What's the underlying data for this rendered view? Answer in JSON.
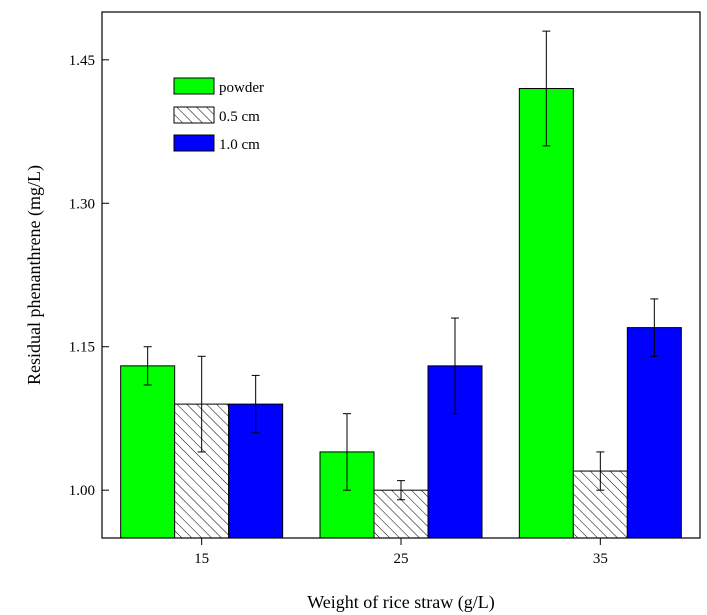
{
  "chart_data": {
    "type": "bar",
    "title": "",
    "xlabel": "Weight of rice straw (g/L)",
    "ylabel": "Residual phenanthrene (mg/L)",
    "categories": [
      "15",
      "25",
      "35"
    ],
    "ylim": [
      0.95,
      1.5
    ],
    "yticks": [
      "1.00",
      "1.15",
      "1.30",
      "1.45"
    ],
    "grid": false,
    "legend_position": "top-left",
    "series": [
      {
        "name": "powder",
        "color": "#00ff00",
        "pattern": "solid",
        "values": [
          1.13,
          1.04,
          1.42
        ],
        "errors": [
          0.02,
          0.04,
          0.06
        ]
      },
      {
        "name": "0.5 cm",
        "color": "#ffffff",
        "pattern": "hatch",
        "values": [
          1.09,
          1.0,
          1.02
        ],
        "errors": [
          0.05,
          0.01,
          0.02
        ]
      },
      {
        "name": "1.0 cm",
        "color": "#0000ff",
        "pattern": "solid",
        "values": [
          1.09,
          1.13,
          1.17
        ],
        "errors": [
          0.03,
          0.05,
          0.03
        ]
      }
    ]
  }
}
